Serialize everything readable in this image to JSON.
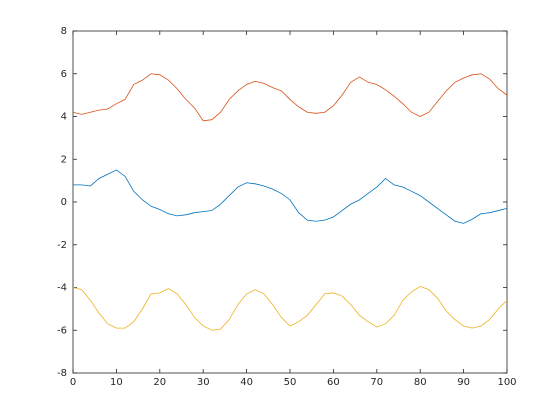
{
  "chart_data": {
    "type": "line",
    "x": [
      0,
      2,
      4,
      6,
      8,
      10,
      12,
      14,
      16,
      18,
      20,
      22,
      24,
      26,
      28,
      30,
      32,
      34,
      36,
      38,
      40,
      42,
      44,
      46,
      48,
      50,
      52,
      54,
      56,
      58,
      60,
      62,
      64,
      66,
      68,
      70,
      72,
      74,
      76,
      78,
      80,
      82,
      84,
      86,
      88,
      90,
      92,
      94,
      96,
      98,
      100
    ],
    "series": [
      {
        "color": "#0072bd",
        "values": [
          0.8,
          0.8,
          0.75,
          1.1,
          1.3,
          1.5,
          1.2,
          0.5,
          0.1,
          -0.2,
          -0.35,
          -0.55,
          -0.65,
          -0.6,
          -0.5,
          -0.45,
          -0.4,
          -0.1,
          0.3,
          0.7,
          0.9,
          0.85,
          0.75,
          0.6,
          0.4,
          0.1,
          -0.5,
          -0.85,
          -0.9,
          -0.85,
          -0.7,
          -0.4,
          -0.1,
          0.1,
          0.4,
          0.7,
          1.1,
          0.8,
          0.7,
          0.5,
          0.3,
          0,
          -0.3,
          -0.6,
          -0.9,
          -1.0,
          -0.8,
          -0.55,
          -0.5,
          -0.4,
          -0.3
        ]
      },
      {
        "color": "#d95319",
        "values": [
          4.2,
          4.1,
          4.2,
          4.3,
          4.35,
          4.6,
          4.8,
          5.5,
          5.7,
          6.0,
          5.95,
          5.7,
          5.3,
          4.8,
          4.4,
          3.8,
          3.85,
          4.2,
          4.8,
          5.2,
          5.5,
          5.65,
          5.55,
          5.35,
          5.2,
          4.8,
          4.45,
          4.2,
          4.15,
          4.2,
          4.5,
          5.0,
          5.6,
          5.85,
          5.6,
          5.5,
          5.25,
          4.95,
          4.6,
          4.2,
          4.0,
          4.2,
          4.7,
          5.2,
          5.6,
          5.8,
          5.95,
          6.0,
          5.75,
          5.3,
          5.0
        ]
      },
      {
        "color": "#edb120",
        "values": [
          -4.0,
          -4.1,
          -4.6,
          -5.2,
          -5.7,
          -5.9,
          -5.9,
          -5.6,
          -5.0,
          -4.3,
          -4.25,
          -4.05,
          -4.3,
          -4.8,
          -5.4,
          -5.8,
          -6.0,
          -5.95,
          -5.5,
          -4.8,
          -4.3,
          -4.1,
          -4.3,
          -4.8,
          -5.4,
          -5.8,
          -5.6,
          -5.3,
          -4.8,
          -4.3,
          -4.25,
          -4.4,
          -4.8,
          -5.3,
          -5.6,
          -5.85,
          -5.7,
          -5.3,
          -4.6,
          -4.2,
          -3.95,
          -4.1,
          -4.5,
          -5.1,
          -5.5,
          -5.8,
          -5.9,
          -5.8,
          -5.5,
          -5.0,
          -4.6
        ]
      }
    ],
    "xlim": [
      0,
      100
    ],
    "xticks": [
      0,
      10,
      20,
      30,
      40,
      50,
      60,
      70,
      80,
      90,
      100
    ],
    "ylim": [
      -8,
      8
    ],
    "yticks": [
      -8,
      -6,
      -4,
      -2,
      0,
      2,
      4,
      6,
      8
    ]
  }
}
